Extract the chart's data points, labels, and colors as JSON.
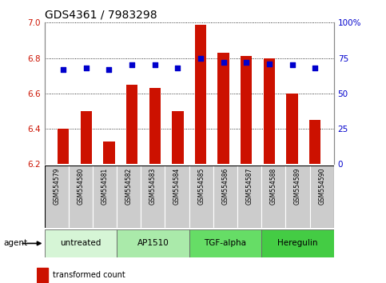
{
  "title": "GDS4361 / 7983298",
  "samples": [
    "GSM554579",
    "GSM554580",
    "GSM554581",
    "GSM554582",
    "GSM554583",
    "GSM554584",
    "GSM554585",
    "GSM554586",
    "GSM554587",
    "GSM554588",
    "GSM554589",
    "GSM554590"
  ],
  "transformed_count": [
    6.4,
    6.5,
    6.33,
    6.65,
    6.63,
    6.5,
    6.99,
    6.83,
    6.81,
    6.8,
    6.6,
    6.45
  ],
  "percentile_rank": [
    67,
    68,
    67,
    70,
    70,
    68,
    75,
    72,
    72,
    71,
    70,
    68
  ],
  "agents": [
    {
      "label": "untreated",
      "samples": [
        0,
        1,
        2
      ],
      "color": "#d6f5d6"
    },
    {
      "label": "AP1510",
      "samples": [
        3,
        4,
        5
      ],
      "color": "#aaeaaa"
    },
    {
      "label": "TGF-alpha",
      "samples": [
        6,
        7,
        8
      ],
      "color": "#66dd66"
    },
    {
      "label": "Heregulin",
      "samples": [
        9,
        10,
        11
      ],
      "color": "#44cc44"
    }
  ],
  "ylim_left": [
    6.2,
    7.0
  ],
  "ylim_right": [
    0,
    100
  ],
  "yticks_left": [
    6.2,
    6.4,
    6.6,
    6.8,
    7.0
  ],
  "yticks_right": [
    0,
    25,
    50,
    75,
    100
  ],
  "bar_color": "#cc1100",
  "dot_color": "#0000cc",
  "bar_bottom": 6.2,
  "xtick_bg": "#cccccc",
  "title_fontsize": 10,
  "axis_label_color_left": "#cc1100",
  "axis_label_color_right": "#0000cc",
  "bar_width": 0.5
}
